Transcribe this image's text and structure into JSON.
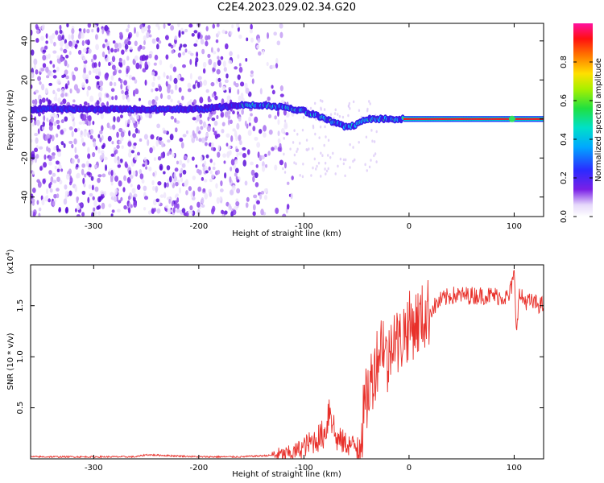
{
  "title": "C2E4.2023.029.02.34.G20",
  "chart_data": [
    {
      "type": "heatmap",
      "xlabel": "Height of straight line (km)",
      "ylabel": "Frequency (Hz)",
      "xlim": [
        -360,
        128
      ],
      "ylim": [
        -50,
        49
      ],
      "xticks": [
        -300,
        -200,
        -100,
        0,
        100
      ],
      "yticks": [
        -40,
        -20,
        0,
        20,
        40
      ],
      "colorbar": {
        "label": "Normalized spectral amplitude",
        "range": [
          0.0,
          1.0
        ],
        "ticks": [
          "0.0",
          "0.2",
          "0.4",
          "0.6",
          "0.8"
        ],
        "colormap": "rainbow (white-violet-blue-cyan-green-yellow-red)"
      },
      "ridge": {
        "description": "dominant frequency track",
        "x": [
          -360,
          -300,
          -200,
          -160,
          -140,
          -120,
          -100,
          -90,
          -80,
          -70,
          -60,
          -50,
          -40,
          -30,
          -20,
          -10,
          0,
          100,
          128
        ],
        "y": [
          5,
          5,
          5,
          7,
          7,
          6,
          4,
          2,
          0,
          -2,
          -4,
          -3,
          0,
          0,
          0,
          0,
          0,
          0,
          0
        ]
      },
      "noise_region_xlim": [
        -360,
        -120
      ]
    },
    {
      "type": "line",
      "xlabel": "Height of straight line (km)",
      "ylabel": "SNR (10 * v/v)",
      "y_multiplier": "(x10^4)",
      "xlim": [
        -360,
        128
      ],
      "ylim": [
        0,
        1.9
      ],
      "xticks": [
        -300,
        -200,
        -100,
        0,
        100
      ],
      "yticks": [
        0.5,
        1.0,
        1.5
      ],
      "yticklabels": [
        "0.5",
        "1.0",
        "1.5"
      ],
      "series": [
        {
          "color": "#e8302a",
          "x": [
            -360,
            -300,
            -260,
            -250,
            -200,
            -160,
            -140,
            -120,
            -110,
            -100,
            -90,
            -80,
            -75,
            -70,
            -60,
            -50,
            -45,
            -40,
            -35,
            -30,
            -25,
            -20,
            -15,
            -10,
            -5,
            0,
            10,
            20,
            30,
            40,
            60,
            80,
            95,
            100,
            102,
            105,
            110,
            128
          ],
          "y": [
            0.02,
            0.02,
            0.02,
            0.04,
            0.02,
            0.02,
            0.03,
            0.04,
            0.06,
            0.12,
            0.18,
            0.25,
            0.55,
            0.2,
            0.15,
            0.12,
            0.3,
            0.6,
            0.8,
            1.0,
            1.2,
            0.9,
            1.3,
            1.1,
            1.25,
            1.3,
            1.35,
            1.45,
            1.55,
            1.6,
            1.6,
            1.6,
            1.58,
            1.8,
            1.3,
            1.6,
            1.55,
            1.5
          ]
        }
      ]
    }
  ]
}
